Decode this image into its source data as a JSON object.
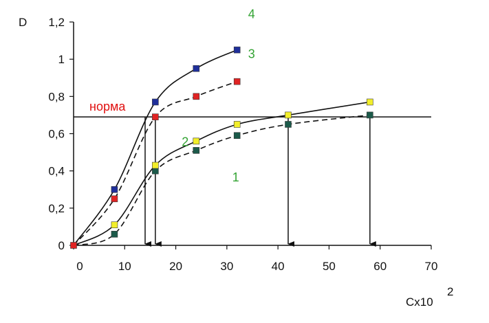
{
  "chart_data": {
    "type": "line",
    "ylabel": "D",
    "xlabel": "Cx10",
    "xlabel_exponent": "2",
    "xlim": [
      0,
      70
    ],
    "ylim": [
      0,
      1.2
    ],
    "x_ticks": [
      "0",
      "10",
      "20",
      "30",
      "40",
      "50",
      "60",
      "70"
    ],
    "y_ticks": [
      "0",
      "0,2",
      "0,4",
      "0,6",
      "0,8",
      "1",
      "1,2"
    ],
    "norm": {
      "label": "норма",
      "value": 0.69,
      "color": "#e01010"
    },
    "series": [
      {
        "name": "1",
        "style": "dashed",
        "marker_color": "#1c5a4a",
        "label_color": "#33a333",
        "x": [
          0,
          8,
          16,
          24,
          32,
          42,
          58
        ],
        "values": [
          0,
          0.06,
          0.4,
          0.51,
          0.59,
          0.65,
          0.7
        ]
      },
      {
        "name": "2",
        "style": "solid",
        "marker_color": "#f2ee2a",
        "label_color": "#33a333",
        "x": [
          0,
          8,
          16,
          24,
          32,
          42,
          58
        ],
        "values": [
          0,
          0.11,
          0.43,
          0.56,
          0.65,
          0.7,
          0.77
        ]
      },
      {
        "name": "3",
        "style": "dashed",
        "marker_color": "#e02424",
        "label_color": "#33a333",
        "x": [
          0,
          8,
          16,
          24,
          32
        ],
        "values": [
          0,
          0.25,
          0.69,
          0.8,
          0.88
        ]
      },
      {
        "name": "4",
        "style": "solid",
        "marker_color": "#1f2f9a",
        "label_color": "#33a333",
        "x": [
          0,
          8,
          16,
          24,
          32
        ],
        "values": [
          0,
          0.3,
          0.77,
          0.95,
          1.05
        ]
      }
    ],
    "arrows_x": [
      14,
      16,
      42,
      58
    ]
  }
}
